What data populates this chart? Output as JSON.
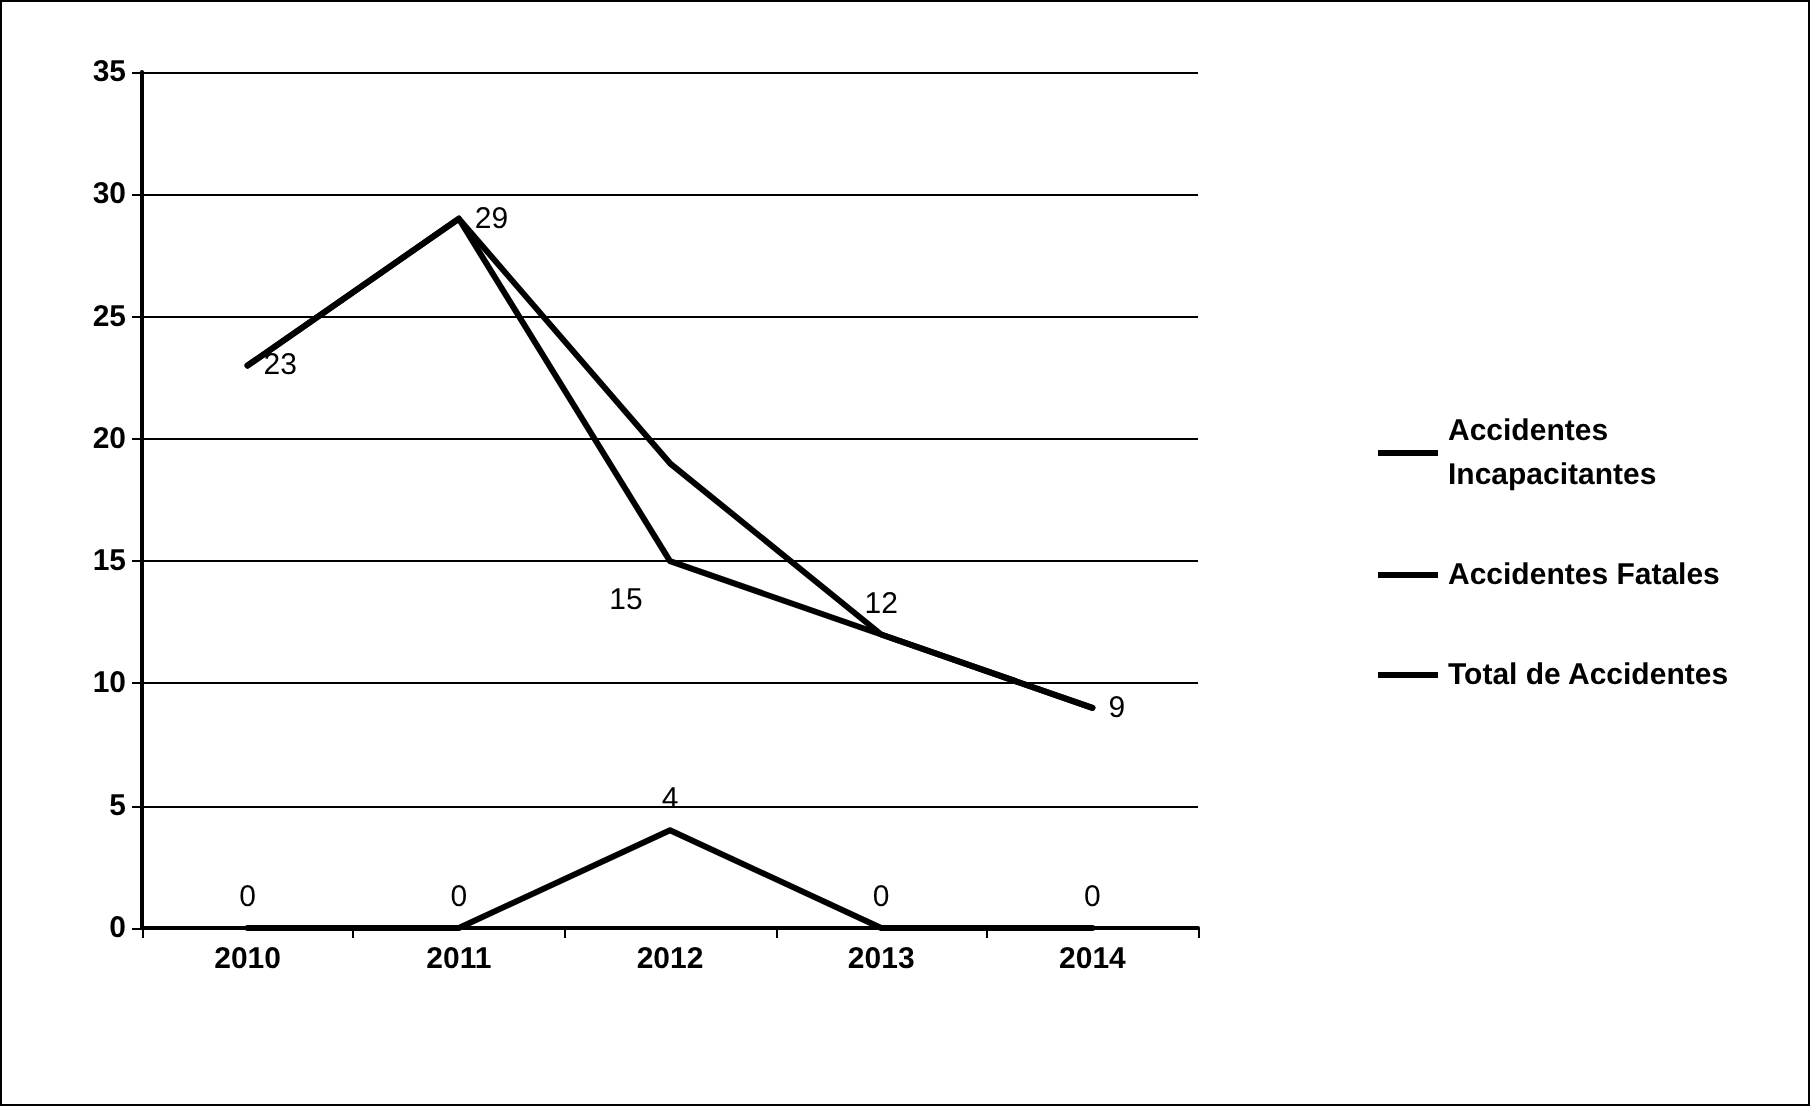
{
  "chart_data": {
    "type": "line",
    "categories": [
      "2010",
      "2011",
      "2012",
      "2013",
      "2014"
    ],
    "series": [
      {
        "name": "Accidentes Incapacitantes",
        "color": "#000000",
        "values": [
          23,
          29,
          15,
          12,
          9
        ],
        "value_labels": [
          "23",
          "29",
          "15",
          "12",
          "9"
        ]
      },
      {
        "name": "Accidentes Fatales",
        "color": "#000000",
        "values": [
          0,
          0,
          4,
          0,
          0
        ],
        "value_labels": [
          "0",
          "0",
          "4",
          "0",
          "0"
        ]
      },
      {
        "name": "Total de Accidentes",
        "color": "#000000",
        "values": [
          23,
          29,
          19,
          12,
          9
        ]
      }
    ],
    "ylim": [
      0,
      35
    ],
    "yticks": [
      0,
      5,
      10,
      15,
      20,
      25,
      30,
      35
    ],
    "grid": "y",
    "legend": "right",
    "marker": "none",
    "line_style": "solid"
  }
}
